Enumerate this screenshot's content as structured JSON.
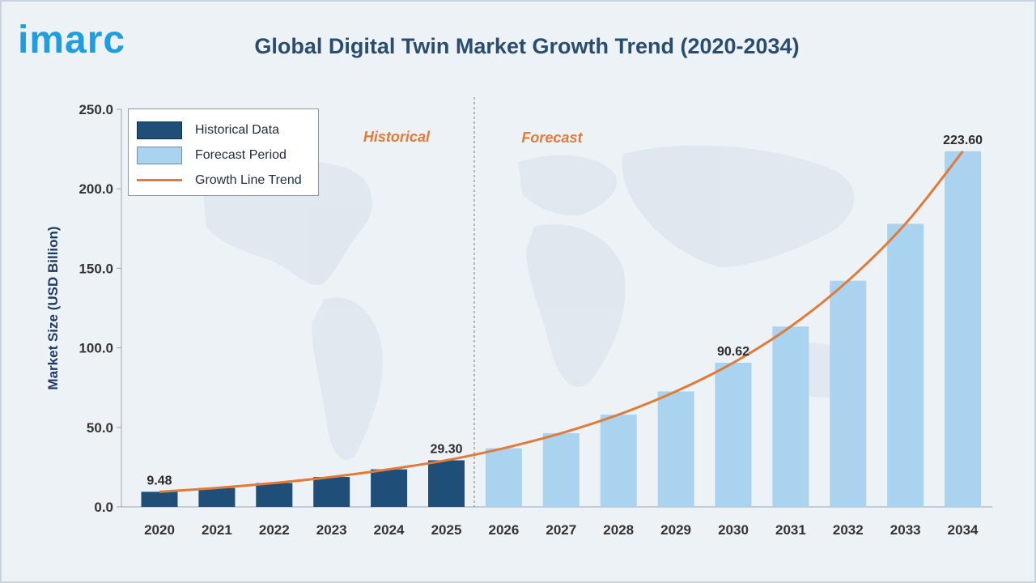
{
  "brand": {
    "logo_text": "imarc"
  },
  "header": {
    "title": "Global Digital Twin Market Growth Trend (2020-2034)"
  },
  "colors": {
    "historical": "#1f4e79",
    "forecast": "#a9d3ef",
    "trend": "#e07b39",
    "axis_text": "#333333",
    "ylabel": "#1f3b63"
  },
  "legend": {
    "historical": "Historical Data",
    "forecast": "Forecast Period",
    "trend": "Growth Line Trend"
  },
  "annotations": {
    "historical": "Historical",
    "forecast": "Forecast"
  },
  "chart_data": {
    "type": "bar",
    "title": "Global Digital Twin Market Growth Trend (2020-2034)",
    "xlabel": "",
    "ylabel": "Market Size (USD Billion)",
    "ylim": [
      0,
      250
    ],
    "yticks": [
      "0.0",
      "50.0",
      "100.0",
      "150.0",
      "200.0",
      "250.0"
    ],
    "categories": [
      "2020",
      "2021",
      "2022",
      "2023",
      "2024",
      "2025",
      "2026",
      "2027",
      "2028",
      "2029",
      "2030",
      "2031",
      "2032",
      "2033",
      "2034"
    ],
    "series": [
      {
        "name": "Historical Data",
        "values": [
          9.48,
          11.9,
          15.0,
          18.8,
          23.6,
          29.3,
          null,
          null,
          null,
          null,
          null,
          null,
          null,
          null,
          null
        ]
      },
      {
        "name": "Forecast Period",
        "values": [
          null,
          null,
          null,
          null,
          null,
          null,
          36.9,
          46.3,
          58.0,
          72.6,
          90.62,
          113.4,
          142.2,
          178.0,
          223.6
        ]
      },
      {
        "name": "Growth Line Trend",
        "values": [
          9.48,
          11.9,
          15.0,
          18.8,
          23.6,
          29.3,
          36.9,
          46.3,
          58.0,
          72.6,
          90.62,
          113.4,
          142.2,
          178.0,
          223.6
        ]
      }
    ],
    "data_labels": [
      {
        "category": "2020",
        "text": "9.48"
      },
      {
        "category": "2025",
        "text": "29.30"
      },
      {
        "category": "2030",
        "text": "90.62"
      },
      {
        "category": "2034",
        "text": "223.60"
      }
    ],
    "divider_between": [
      "2025",
      "2026"
    ],
    "grid": false,
    "legend_position": "top-left"
  }
}
